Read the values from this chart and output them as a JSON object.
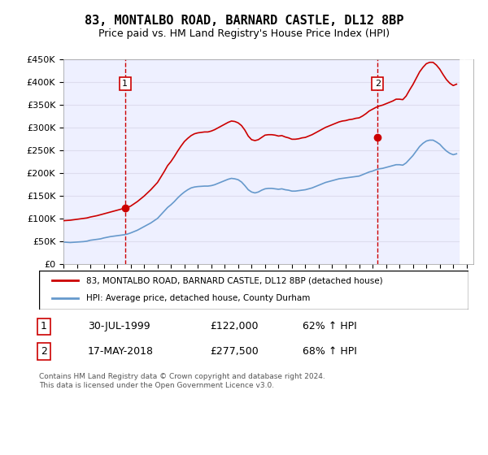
{
  "title": "83, MONTALBO ROAD, BARNARD CASTLE, DL12 8BP",
  "subtitle": "Price paid vs. HM Land Registry's House Price Index (HPI)",
  "ylabel_ticks": [
    "£0",
    "£50K",
    "£100K",
    "£150K",
    "£200K",
    "£250K",
    "£300K",
    "£350K",
    "£400K",
    "£450K"
  ],
  "ylim": [
    0,
    450000
  ],
  "xlim_start": 1995.0,
  "xlim_end": 2025.5,
  "red_line_color": "#cc0000",
  "blue_line_color": "#6699cc",
  "grid_color": "#ddddee",
  "bg_color": "#eef0ff",
  "sale1_x": 1999.58,
  "sale1_y": 122000,
  "sale2_x": 2018.38,
  "sale2_y": 277500,
  "legend_line1": "83, MONTALBO ROAD, BARNARD CASTLE, DL12 8BP (detached house)",
  "legend_line2": "HPI: Average price, detached house, County Durham",
  "table_row1_num": "1",
  "table_row1_date": "30-JUL-1999",
  "table_row1_price": "£122,000",
  "table_row1_hpi": "62% ↑ HPI",
  "table_row2_num": "2",
  "table_row2_date": "17-MAY-2018",
  "table_row2_price": "£277,500",
  "table_row2_hpi": "68% ↑ HPI",
  "footnote": "Contains HM Land Registry data © Crown copyright and database right 2024.\nThis data is licensed under the Open Government Licence v3.0.",
  "hpi_data_x": [
    1995.0,
    1995.25,
    1995.5,
    1995.75,
    1996.0,
    1996.25,
    1996.5,
    1996.75,
    1997.0,
    1997.25,
    1997.5,
    1997.75,
    1998.0,
    1998.25,
    1998.5,
    1998.75,
    1999.0,
    1999.25,
    1999.5,
    1999.75,
    2000.0,
    2000.25,
    2000.5,
    2000.75,
    2001.0,
    2001.25,
    2001.5,
    2001.75,
    2002.0,
    2002.25,
    2002.5,
    2002.75,
    2003.0,
    2003.25,
    2003.5,
    2003.75,
    2004.0,
    2004.25,
    2004.5,
    2004.75,
    2005.0,
    2005.25,
    2005.5,
    2005.75,
    2006.0,
    2006.25,
    2006.5,
    2006.75,
    2007.0,
    2007.25,
    2007.5,
    2007.75,
    2008.0,
    2008.25,
    2008.5,
    2008.75,
    2009.0,
    2009.25,
    2009.5,
    2009.75,
    2010.0,
    2010.25,
    2010.5,
    2010.75,
    2011.0,
    2011.25,
    2011.5,
    2011.75,
    2012.0,
    2012.25,
    2012.5,
    2012.75,
    2013.0,
    2013.25,
    2013.5,
    2013.75,
    2014.0,
    2014.25,
    2014.5,
    2014.75,
    2015.0,
    2015.25,
    2015.5,
    2015.75,
    2016.0,
    2016.25,
    2016.5,
    2016.75,
    2017.0,
    2017.25,
    2017.5,
    2017.75,
    2018.0,
    2018.25,
    2018.5,
    2018.75,
    2019.0,
    2019.25,
    2019.5,
    2019.75,
    2020.0,
    2020.25,
    2020.5,
    2020.75,
    2021.0,
    2021.25,
    2021.5,
    2021.75,
    2022.0,
    2022.25,
    2022.5,
    2022.75,
    2023.0,
    2023.25,
    2023.5,
    2023.75,
    2024.0,
    2024.25
  ],
  "hpi_data_y": [
    48000,
    47500,
    47000,
    47500,
    48000,
    48500,
    49000,
    50000,
    52000,
    53000,
    54000,
    55000,
    57000,
    58500,
    60000,
    61000,
    62000,
    63000,
    64000,
    65500,
    68000,
    71000,
    74000,
    78000,
    82000,
    86000,
    90000,
    95000,
    100000,
    108000,
    116000,
    124000,
    130000,
    137000,
    145000,
    152000,
    158000,
    163000,
    167000,
    169000,
    170000,
    170500,
    171000,
    171000,
    172000,
    174000,
    177000,
    180000,
    183000,
    186000,
    188000,
    187000,
    185000,
    180000,
    172000,
    163000,
    158000,
    156000,
    158000,
    162000,
    165000,
    166000,
    166000,
    165000,
    164000,
    165000,
    163000,
    162000,
    160000,
    160000,
    161000,
    162000,
    163000,
    165000,
    167000,
    170000,
    173000,
    176000,
    179000,
    181000,
    183000,
    185000,
    187000,
    188000,
    189000,
    190000,
    191000,
    192000,
    193000,
    196000,
    199000,
    202000,
    204000,
    207000,
    209000,
    210000,
    212000,
    214000,
    216000,
    218000,
    218000,
    217000,
    222000,
    230000,
    238000,
    248000,
    258000,
    265000,
    270000,
    272000,
    272000,
    268000,
    263000,
    255000,
    248000,
    243000,
    240000,
    242000
  ],
  "red_data_x": [
    1995.0,
    1995.25,
    1995.5,
    1995.75,
    1996.0,
    1996.25,
    1996.5,
    1996.75,
    1997.0,
    1997.25,
    1997.5,
    1997.75,
    1998.0,
    1998.25,
    1998.5,
    1998.75,
    1999.0,
    1999.25,
    1999.5,
    1999.75,
    2000.0,
    2000.25,
    2000.5,
    2000.75,
    2001.0,
    2001.25,
    2001.5,
    2001.75,
    2002.0,
    2002.25,
    2002.5,
    2002.75,
    2003.0,
    2003.25,
    2003.5,
    2003.75,
    2004.0,
    2004.25,
    2004.5,
    2004.75,
    2005.0,
    2005.25,
    2005.5,
    2005.75,
    2006.0,
    2006.25,
    2006.5,
    2006.75,
    2007.0,
    2007.25,
    2007.5,
    2007.75,
    2008.0,
    2008.25,
    2008.5,
    2008.75,
    2009.0,
    2009.25,
    2009.5,
    2009.75,
    2010.0,
    2010.25,
    2010.5,
    2010.75,
    2011.0,
    2011.25,
    2011.5,
    2011.75,
    2012.0,
    2012.25,
    2012.5,
    2012.75,
    2013.0,
    2013.25,
    2013.5,
    2013.75,
    2014.0,
    2014.25,
    2014.5,
    2014.75,
    2015.0,
    2015.25,
    2015.5,
    2015.75,
    2016.0,
    2016.25,
    2016.5,
    2016.75,
    2017.0,
    2017.25,
    2017.5,
    2017.75,
    2018.0,
    2018.25,
    2018.5,
    2018.75,
    2019.0,
    2019.25,
    2019.5,
    2019.75,
    2020.0,
    2020.25,
    2020.5,
    2020.75,
    2021.0,
    2021.25,
    2021.5,
    2021.75,
    2022.0,
    2022.25,
    2022.5,
    2022.75,
    2023.0,
    2023.25,
    2023.5,
    2023.75,
    2024.0,
    2024.25
  ],
  "red_data_y": [
    95000,
    95500,
    96000,
    97000,
    98000,
    99000,
    100000,
    101000,
    103000,
    104500,
    106000,
    108000,
    110000,
    112000,
    114000,
    116000,
    118000,
    120000,
    122000,
    124000,
    127000,
    132000,
    137000,
    143000,
    149000,
    156000,
    163000,
    171000,
    179000,
    191000,
    203000,
    216000,
    225000,
    236000,
    248000,
    259000,
    269000,
    276000,
    282000,
    286000,
    288000,
    289000,
    290000,
    290000,
    292000,
    295000,
    299000,
    303000,
    307000,
    311000,
    314000,
    313000,
    310000,
    304000,
    294000,
    281000,
    273000,
    271000,
    273000,
    278000,
    283000,
    284000,
    284000,
    283000,
    281000,
    282000,
    279000,
    277000,
    274000,
    274000,
    275000,
    277000,
    278000,
    281000,
    284000,
    288000,
    292000,
    296000,
    300000,
    303000,
    306000,
    309000,
    312000,
    314000,
    315000,
    317000,
    318000,
    320000,
    321000,
    325000,
    330000,
    336000,
    340000,
    344000,
    347000,
    349000,
    352000,
    355000,
    358000,
    362000,
    362000,
    361000,
    369000,
    382000,
    394000,
    408000,
    422000,
    432000,
    440000,
    443000,
    443000,
    437000,
    428000,
    416000,
    405000,
    397000,
    392000,
    395000
  ]
}
